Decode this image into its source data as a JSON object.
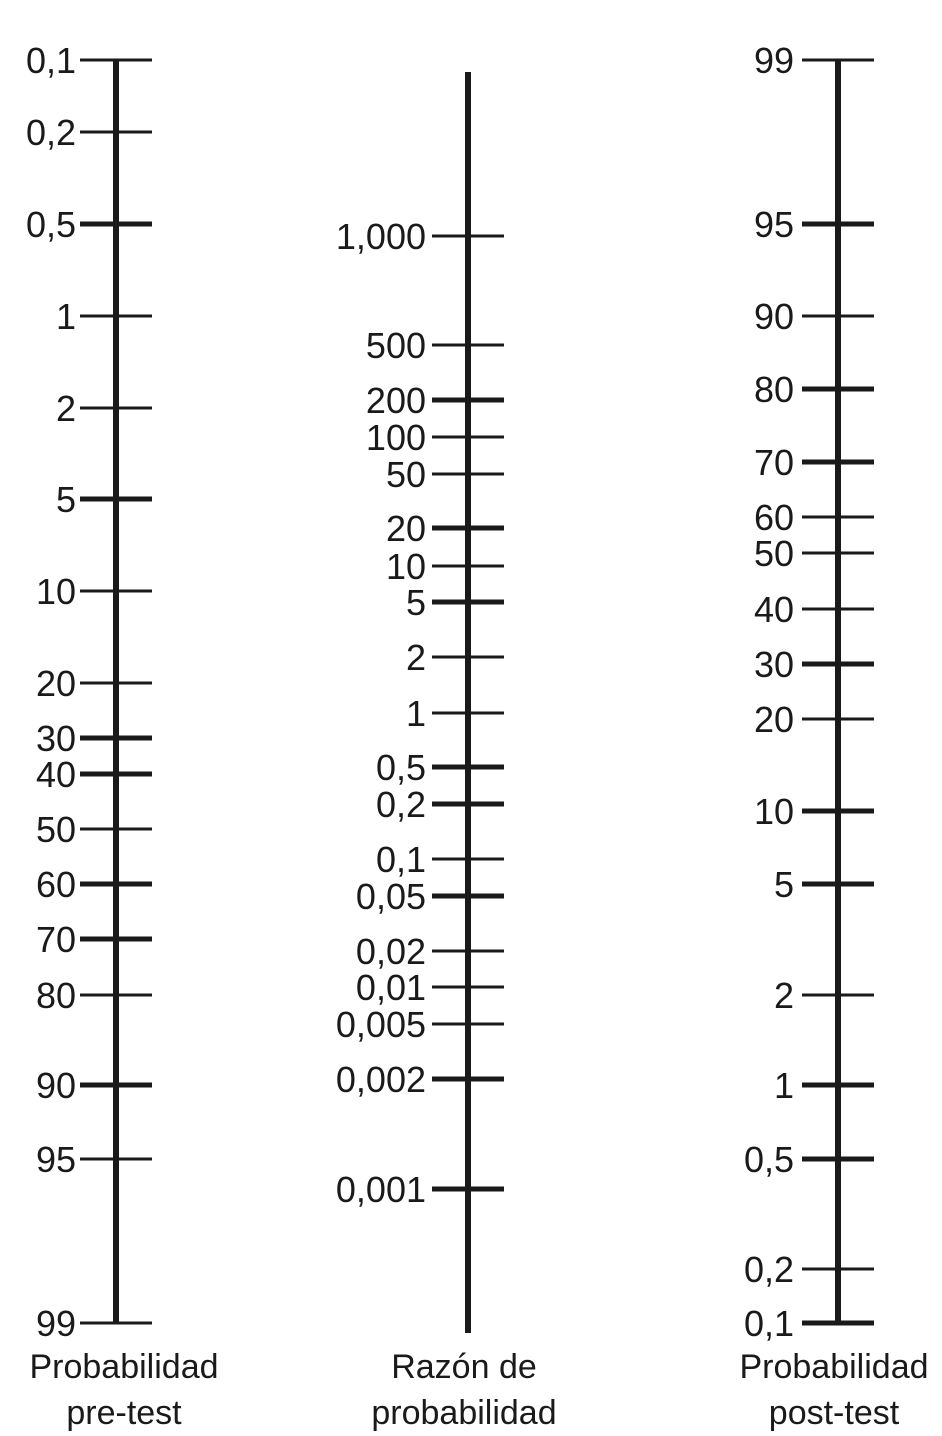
{
  "scales": [
    {
      "id": "pretest",
      "title_lines": [
        "Probabilidad",
        "pre-test"
      ],
      "ticks": [
        {
          "label": "0,1",
          "bold": false
        },
        {
          "label": "0,2",
          "bold": false
        },
        {
          "label": "0,5",
          "bold": true
        },
        {
          "label": "1",
          "bold": false
        },
        {
          "label": "2",
          "bold": false
        },
        {
          "label": "5",
          "bold": true
        },
        {
          "label": "10",
          "bold": false
        },
        {
          "label": "20",
          "bold": false
        },
        {
          "label": "30",
          "bold": true
        },
        {
          "label": "40",
          "bold": true
        },
        {
          "label": "50",
          "bold": false
        },
        {
          "label": "60",
          "bold": true
        },
        {
          "label": "70",
          "bold": true
        },
        {
          "label": "80",
          "bold": false
        },
        {
          "label": "90",
          "bold": true
        },
        {
          "label": "95",
          "bold": false
        },
        {
          "label": "99",
          "bold": false
        }
      ]
    },
    {
      "id": "likelihood-ratio",
      "title_lines": [
        "Razón de",
        "probabilidad"
      ],
      "ticks": [
        {
          "label": "1,000",
          "bold": false
        },
        {
          "label": "500",
          "bold": false
        },
        {
          "label": "200",
          "bold": true
        },
        {
          "label": "100",
          "bold": false
        },
        {
          "label": "50",
          "bold": false
        },
        {
          "label": "20",
          "bold": true
        },
        {
          "label": "10",
          "bold": false
        },
        {
          "label": "5",
          "bold": true
        },
        {
          "label": "2",
          "bold": false
        },
        {
          "label": "1",
          "bold": false
        },
        {
          "label": "0,5",
          "bold": true
        },
        {
          "label": "0,2",
          "bold": true
        },
        {
          "label": "0,1",
          "bold": false
        },
        {
          "label": "0,05",
          "bold": true
        },
        {
          "label": "0,02",
          "bold": false
        },
        {
          "label": "0,01",
          "bold": false
        },
        {
          "label": "0,005",
          "bold": false
        },
        {
          "label": "0,002",
          "bold": true
        },
        {
          "label": "0,001",
          "bold": true
        }
      ]
    },
    {
      "id": "posttest",
      "title_lines": [
        "Probabilidad",
        "post-test"
      ],
      "ticks": [
        {
          "label": "99",
          "bold": false
        },
        {
          "label": "95",
          "bold": true
        },
        {
          "label": "90",
          "bold": false
        },
        {
          "label": "80",
          "bold": true
        },
        {
          "label": "70",
          "bold": true
        },
        {
          "label": "60",
          "bold": false
        },
        {
          "label": "50",
          "bold": false
        },
        {
          "label": "40",
          "bold": false
        },
        {
          "label": "30",
          "bold": true
        },
        {
          "label": "20",
          "bold": false
        },
        {
          "label": "10",
          "bold": true
        },
        {
          "label": "5",
          "bold": true
        },
        {
          "label": "2",
          "bold": false
        },
        {
          "label": "1",
          "bold": true
        },
        {
          "label": "0,5",
          "bold": true
        },
        {
          "label": "0,2",
          "bold": false
        },
        {
          "label": "0,1",
          "bold": true
        }
      ]
    }
  ]
}
